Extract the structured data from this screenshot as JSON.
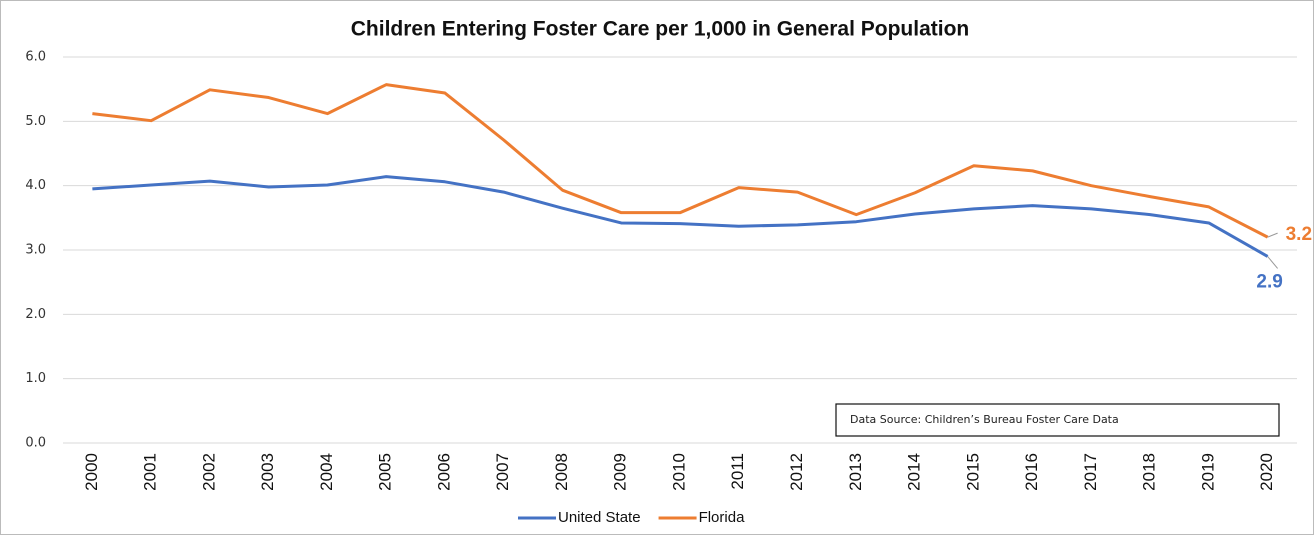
{
  "chart_data": {
    "type": "line",
    "title": "Children Entering Foster Care per 1,000 in General Population",
    "categories": [
      "2000",
      "2001",
      "2002",
      "2003",
      "2004",
      "2005",
      "2006",
      "2007",
      "2008",
      "2009",
      "2010",
      "2011",
      "2012",
      "2013",
      "2014",
      "2015",
      "2016",
      "2017",
      "2018",
      "2019",
      "2020"
    ],
    "series": [
      {
        "name": "United State",
        "color": "#4472c4",
        "values": [
          3.95,
          4.01,
          4.07,
          3.98,
          4.01,
          4.14,
          4.06,
          3.9,
          3.65,
          3.42,
          3.41,
          3.37,
          3.39,
          3.44,
          3.56,
          3.64,
          3.69,
          3.64,
          3.55,
          3.42,
          2.9
        ]
      },
      {
        "name": "Florida",
        "color": "#ed7d31",
        "values": [
          5.12,
          5.01,
          5.49,
          5.37,
          5.12,
          5.57,
          5.44,
          4.71,
          3.93,
          3.58,
          3.58,
          3.97,
          3.9,
          3.55,
          3.89,
          4.31,
          4.23,
          4.0,
          3.83,
          3.67,
          3.2
        ]
      }
    ],
    "ylim": [
      0,
      6
    ],
    "yticks": [
      {
        "value": 0,
        "label": "0.0"
      },
      {
        "value": 1,
        "label": "1.0"
      },
      {
        "value": 2,
        "label": "2.0"
      },
      {
        "value": 3,
        "label": "3.0"
      },
      {
        "value": 4,
        "label": "4.0"
      },
      {
        "value": 5,
        "label": "5.0"
      },
      {
        "value": 6,
        "label": "6.0"
      }
    ],
    "grid": true,
    "label_last": true,
    "legend": "bottom",
    "annotation": "Data Source: Children’s Bureau Foster Care Data"
  }
}
